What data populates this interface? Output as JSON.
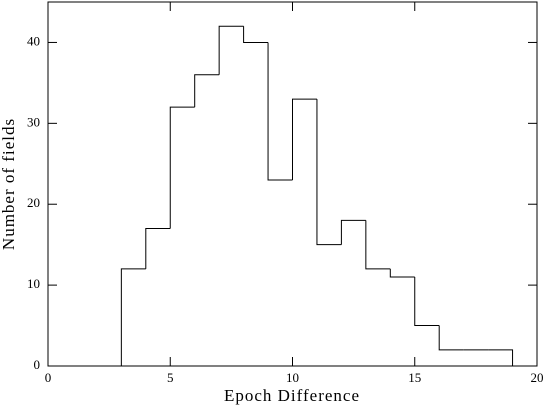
{
  "chart_data": {
    "type": "histogram",
    "x_label": "Epoch Difference",
    "y_label": "Number of fields",
    "bins": [
      3,
      4,
      5,
      6,
      7,
      8,
      9,
      10,
      11,
      12,
      13,
      14,
      15,
      16,
      17,
      18,
      19
    ],
    "values": [
      12,
      17,
      32,
      36,
      42,
      40,
      23,
      33,
      15,
      18,
      12,
      11,
      5,
      2,
      2,
      2
    ],
    "color": "#000000",
    "xlim": [
      0,
      20
    ],
    "xticks": [
      0,
      5,
      10,
      15,
      20
    ],
    "ylim": [
      0,
      45
    ],
    "yticks": [
      0,
      10,
      20,
      30,
      40
    ]
  }
}
